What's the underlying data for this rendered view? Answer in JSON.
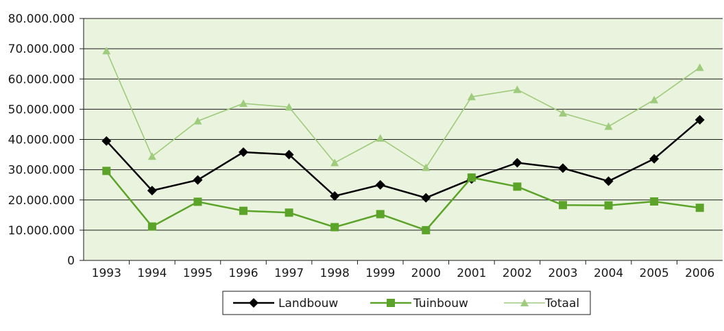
{
  "chart_data": {
    "type": "line",
    "title": "",
    "xlabel": "",
    "ylabel": "",
    "categories": [
      "1993",
      "1994",
      "1995",
      "1996",
      "1997",
      "1998",
      "1999",
      "2000",
      "2001",
      "2002",
      "2003",
      "2004",
      "2005",
      "2006"
    ],
    "ylim": [
      0,
      80000000
    ],
    "ytick_values": [
      0,
      10000000,
      20000000,
      30000000,
      40000000,
      50000000,
      60000000,
      70000000,
      80000000
    ],
    "ytick_labels": [
      "0",
      "10.000.000",
      "20.000.000",
      "30.000.000",
      "40.000.000",
      "50.000.000",
      "60.000.000",
      "70.000.000",
      "80.000.000"
    ],
    "grid": true,
    "legend_position": "bottom",
    "plot_background": "#eaf3dd",
    "series": [
      {
        "name": "Landbouw",
        "color": "#000000",
        "marker": "diamond",
        "values": [
          39500000,
          23100000,
          26600000,
          35800000,
          35000000,
          21300000,
          25000000,
          20700000,
          26900000,
          32300000,
          30500000,
          26200000,
          33600000,
          46500000
        ]
      },
      {
        "name": "Tuinbouw",
        "color": "#5ca32a",
        "marker": "square",
        "values": [
          29600000,
          11200000,
          19400000,
          16400000,
          15800000,
          11000000,
          15300000,
          10000000,
          27400000,
          24400000,
          18300000,
          18200000,
          19500000,
          17400000
        ]
      },
      {
        "name": "Totaal",
        "color": "#9ecb7c",
        "marker": "triangle",
        "values": [
          69300000,
          34400000,
          46100000,
          51900000,
          50700000,
          32300000,
          40400000,
          30700000,
          54100000,
          56500000,
          48700000,
          44300000,
          53100000,
          63800000
        ]
      }
    ]
  }
}
